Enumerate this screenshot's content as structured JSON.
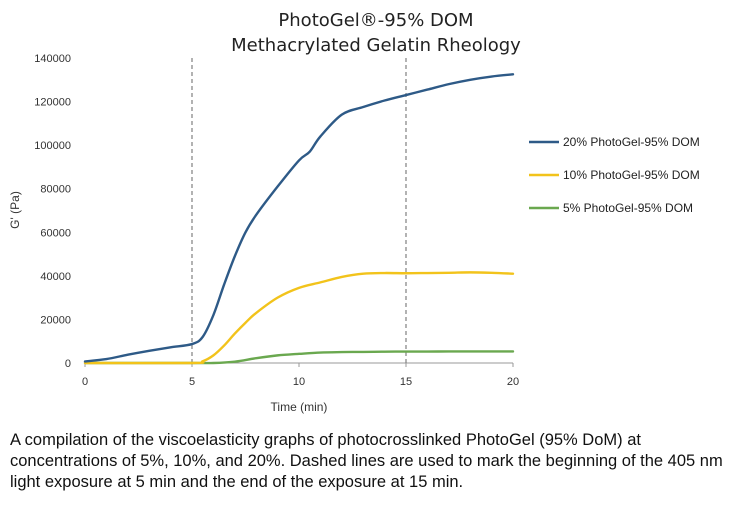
{
  "chart_data": {
    "type": "line",
    "title": "PhotoGel®-95% DOM",
    "subtitle": "Methacrylated Gelatin Rheology",
    "xlabel": "Time (min)",
    "ylabel": "G' (Pa)",
    "xlim": [
      0,
      20
    ],
    "ylim": [
      0,
      140000
    ],
    "x_ticks": [
      0,
      5,
      10,
      15,
      20
    ],
    "y_ticks": [
      0,
      20000,
      40000,
      60000,
      80000,
      100000,
      120000,
      140000
    ],
    "grid": false,
    "legend_position": "right",
    "vlines": [
      {
        "x": 5,
        "style": "dashed",
        "color": "#808080"
      },
      {
        "x": 15,
        "style": "dashed",
        "color": "#808080"
      }
    ],
    "series": [
      {
        "name": "20% PhotoGel-95% DOM",
        "color": "#2e5a87",
        "x": [
          0,
          1,
          2,
          3,
          4,
          5,
          5.5,
          6,
          6.5,
          7,
          7.5,
          8,
          9,
          10,
          10.5,
          11,
          12,
          13,
          14,
          15,
          16,
          17,
          18,
          19,
          20
        ],
        "y": [
          700,
          1800,
          3800,
          5600,
          7200,
          8700,
          12000,
          22000,
          36000,
          49000,
          60000,
          68000,
          81000,
          93000,
          97000,
          104000,
          114000,
          117500,
          120500,
          123000,
          125500,
          128000,
          130000,
          131500,
          132500
        ]
      },
      {
        "name": "10% PhotoGel-95% DOM",
        "color": "#f2c31b",
        "x": [
          0,
          5,
          5.5,
          6,
          6.5,
          7,
          7.5,
          8,
          9,
          10,
          11,
          12,
          13,
          14,
          15,
          16,
          17,
          18,
          19,
          20
        ],
        "y": [
          0,
          0,
          800,
          3500,
          8000,
          13500,
          18500,
          23000,
          30000,
          34500,
          37000,
          39500,
          41000,
          41300,
          41200,
          41300,
          41400,
          41600,
          41400,
          41000
        ]
      },
      {
        "name": "5% PhotoGel-95% DOM",
        "color": "#6aa84f",
        "x": [
          0,
          5,
          6,
          7,
          8,
          9,
          10,
          11,
          12,
          13,
          14,
          15,
          16,
          17,
          18,
          19,
          20
        ],
        "y": [
          0,
          0,
          0,
          600,
          2200,
          3500,
          4200,
          4800,
          5000,
          5100,
          5200,
          5250,
          5250,
          5300,
          5300,
          5300,
          5300
        ]
      }
    ]
  },
  "caption": "A compilation of the viscoelasticity graphs of photocrosslinked PhotoGel (95% DoM) at concentrations of 5%, 10%, and 20%. Dashed lines are used to mark the beginning of the 405 nm light exposure at 5 min and the end of the exposure at 15 min."
}
